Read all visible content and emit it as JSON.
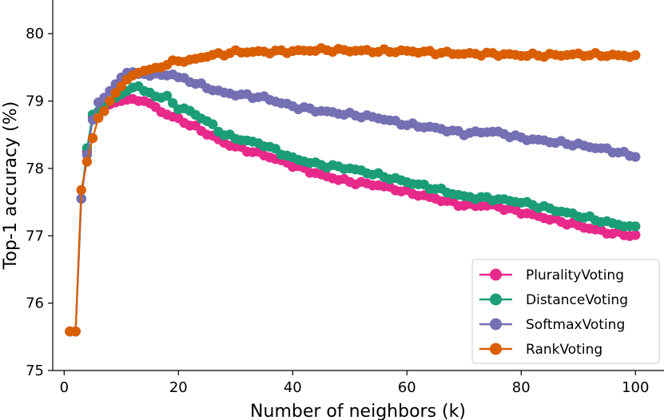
{
  "chart_data": {
    "type": "line",
    "title": "",
    "xlabel": "Number of neighbors (k)",
    "ylabel": "Top-1 accuracy (%)",
    "xlim": [
      -2,
      105
    ],
    "ylim": [
      75,
      80.5
    ],
    "xticks": [
      0,
      20,
      40,
      60,
      80,
      100
    ],
    "yticks": [
      75,
      76,
      77,
      78,
      79,
      80
    ],
    "grid": false,
    "legend_position": "bottom-right",
    "series": [
      {
        "name": "PluralityVoting",
        "color": "#e7298a",
        "keypoints": [
          [
            1,
            75.58
          ],
          [
            2,
            75.58
          ],
          [
            3,
            77.55
          ],
          [
            4,
            78.25
          ],
          [
            5,
            78.75
          ],
          [
            6,
            78.82
          ],
          [
            7,
            78.9
          ],
          [
            8,
            78.95
          ],
          [
            9,
            78.98
          ],
          [
            10,
            79.0
          ],
          [
            11,
            79.02
          ],
          [
            12,
            79.03
          ],
          [
            13,
            79.0
          ],
          [
            14,
            79.0
          ],
          [
            16,
            78.9
          ],
          [
            18,
            78.8
          ],
          [
            20,
            78.73
          ],
          [
            22,
            78.65
          ],
          [
            25,
            78.52
          ],
          [
            28,
            78.38
          ],
          [
            30,
            78.32
          ],
          [
            35,
            78.2
          ],
          [
            40,
            78.05
          ],
          [
            45,
            77.9
          ],
          [
            50,
            77.8
          ],
          [
            55,
            77.75
          ],
          [
            60,
            77.65
          ],
          [
            65,
            77.55
          ],
          [
            70,
            77.45
          ],
          [
            75,
            77.45
          ],
          [
            80,
            77.35
          ],
          [
            85,
            77.25
          ],
          [
            90,
            77.15
          ],
          [
            95,
            77.05
          ],
          [
            100,
            77.0
          ]
        ]
      },
      {
        "name": "DistanceVoting",
        "color": "#1b9e77",
        "keypoints": [
          [
            1,
            75.58
          ],
          [
            2,
            75.58
          ],
          [
            3,
            77.55
          ],
          [
            4,
            78.3
          ],
          [
            5,
            78.8
          ],
          [
            6,
            78.85
          ],
          [
            7,
            78.93
          ],
          [
            8,
            79.0
          ],
          [
            9,
            79.05
          ],
          [
            10,
            79.1
          ],
          [
            11,
            79.15
          ],
          [
            12,
            79.2
          ],
          [
            13,
            79.22
          ],
          [
            14,
            79.15
          ],
          [
            16,
            79.08
          ],
          [
            18,
            79.05
          ],
          [
            20,
            78.9
          ],
          [
            22,
            78.85
          ],
          [
            25,
            78.7
          ],
          [
            28,
            78.5
          ],
          [
            30,
            78.45
          ],
          [
            35,
            78.35
          ],
          [
            40,
            78.15
          ],
          [
            45,
            78.05
          ],
          [
            50,
            78.0
          ],
          [
            55,
            77.9
          ],
          [
            60,
            77.8
          ],
          [
            65,
            77.7
          ],
          [
            70,
            77.58
          ],
          [
            75,
            77.55
          ],
          [
            80,
            77.5
          ],
          [
            85,
            77.4
          ],
          [
            90,
            77.3
          ],
          [
            95,
            77.2
          ],
          [
            100,
            77.12
          ]
        ]
      },
      {
        "name": "SoftmaxVoting",
        "color": "#7570b3",
        "keypoints": [
          [
            1,
            75.58
          ],
          [
            2,
            75.58
          ],
          [
            3,
            77.55
          ],
          [
            4,
            78.2
          ],
          [
            5,
            78.72
          ],
          [
            6,
            78.98
          ],
          [
            7,
            79.05
          ],
          [
            8,
            79.15
          ],
          [
            9,
            79.25
          ],
          [
            10,
            79.35
          ],
          [
            11,
            79.42
          ],
          [
            12,
            79.43
          ],
          [
            13,
            79.4
          ],
          [
            15,
            79.4
          ],
          [
            17,
            79.38
          ],
          [
            19,
            79.4
          ],
          [
            20,
            79.35
          ],
          [
            22,
            79.3
          ],
          [
            25,
            79.2
          ],
          [
            28,
            79.12
          ],
          [
            30,
            79.1
          ],
          [
            35,
            79.05
          ],
          [
            40,
            78.92
          ],
          [
            45,
            78.85
          ],
          [
            50,
            78.8
          ],
          [
            55,
            78.75
          ],
          [
            60,
            78.65
          ],
          [
            65,
            78.6
          ],
          [
            70,
            78.52
          ],
          [
            75,
            78.55
          ],
          [
            80,
            78.45
          ],
          [
            85,
            78.4
          ],
          [
            90,
            78.35
          ],
          [
            95,
            78.28
          ],
          [
            100,
            78.18
          ]
        ]
      },
      {
        "name": "RankVoting",
        "color": "#d95f02",
        "keypoints": [
          [
            1,
            75.58
          ],
          [
            2,
            75.58
          ],
          [
            3,
            77.68
          ],
          [
            4,
            78.1
          ],
          [
            5,
            78.45
          ],
          [
            6,
            78.75
          ],
          [
            7,
            78.85
          ],
          [
            8,
            79.0
          ],
          [
            9,
            79.12
          ],
          [
            10,
            79.22
          ],
          [
            11,
            79.32
          ],
          [
            12,
            79.38
          ],
          [
            13,
            79.42
          ],
          [
            14,
            79.45
          ],
          [
            16,
            79.48
          ],
          [
            18,
            79.55
          ],
          [
            20,
            79.6
          ],
          [
            22,
            79.6
          ],
          [
            25,
            79.67
          ],
          [
            28,
            79.7
          ],
          [
            30,
            79.73
          ],
          [
            35,
            79.73
          ],
          [
            40,
            79.74
          ],
          [
            45,
            79.76
          ],
          [
            50,
            79.75
          ],
          [
            55,
            79.74
          ],
          [
            60,
            79.74
          ],
          [
            65,
            79.72
          ],
          [
            70,
            79.7
          ],
          [
            75,
            79.7
          ],
          [
            80,
            79.68
          ],
          [
            85,
            79.68
          ],
          [
            90,
            79.69
          ],
          [
            95,
            79.68
          ],
          [
            100,
            79.67
          ]
        ]
      }
    ]
  }
}
